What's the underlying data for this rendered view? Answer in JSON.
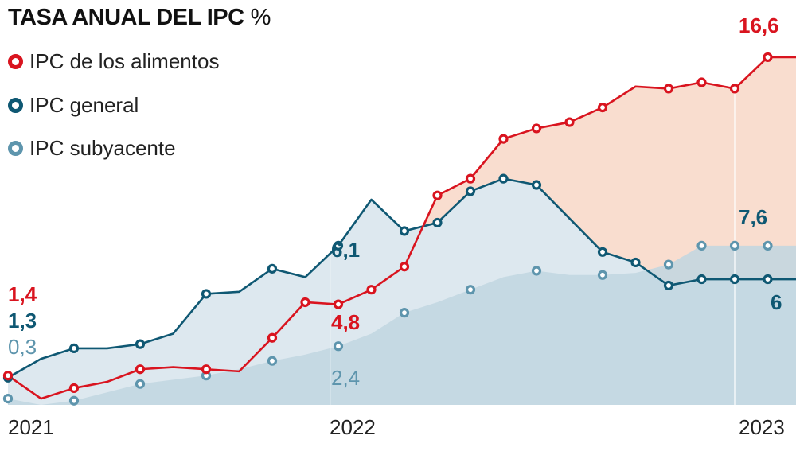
{
  "colors": {
    "food": "#d9141f",
    "general": "#0f5873",
    "core": "#5e95ad",
    "food_fill": "#f9ddcf",
    "general_fill": "#dde8ef",
    "core_fill": "#c1d6e1"
  },
  "header": {
    "title": "TASA ANUAL DEL IPC",
    "unit": "%"
  },
  "legend": [
    {
      "name": "IPC de los alimentos",
      "icon": "ring-marker-red"
    },
    {
      "name": "IPC general",
      "icon": "ring-marker-dark-blue"
    },
    {
      "name": "IPC subyacente",
      "icon": "ring-marker-light-blue"
    }
  ],
  "x_ticks": [
    "2021",
    "2022",
    "2023"
  ],
  "annotations": {
    "food_start": "1,4",
    "general_start": "1,3",
    "core_start": "0,3",
    "general_2022": "6,1",
    "food_2022": "4,8",
    "core_2022": "2,4",
    "food_end": "16,6",
    "core_end": "7,6",
    "general_end": "6"
  },
  "chart_data": {
    "type": "line",
    "title": "TASA ANUAL DEL IPC %",
    "x": [
      "2021-01",
      "2021-02",
      "2021-03",
      "2021-04",
      "2021-05",
      "2021-06",
      "2021-07",
      "2021-08",
      "2021-09",
      "2021-10",
      "2021-11",
      "2021-12",
      "2022-01",
      "2022-02",
      "2022-03",
      "2022-04",
      "2022-05",
      "2022-06",
      "2022-07",
      "2022-08",
      "2022-09",
      "2022-10",
      "2022-11",
      "2022-12",
      "2023-01"
    ],
    "x_ticks": [
      "2021",
      "2022",
      "2023"
    ],
    "ylim": [
      0,
      18
    ],
    "grid": false,
    "legend_position": "top-left",
    "series": [
      {
        "name": "IPC de los alimentos",
        "values": [
          1.4,
          0.3,
          0.8,
          1.1,
          1.7,
          1.8,
          1.7,
          1.6,
          3.2,
          4.9,
          4.8,
          5.5,
          6.6,
          10.0,
          10.8,
          12.7,
          13.2,
          13.5,
          14.2,
          15.2,
          15.1,
          15.4,
          15.1,
          16.6,
          16.6
        ]
      },
      {
        "name": "IPC general",
        "values": [
          1.3,
          2.2,
          2.7,
          2.7,
          2.9,
          3.4,
          5.3,
          5.4,
          6.5,
          6.1,
          7.6,
          9.8,
          8.3,
          8.7,
          10.2,
          10.8,
          10.5,
          8.9,
          7.3,
          6.8,
          5.7,
          6.0,
          6.0,
          6.0,
          6.0
        ]
      },
      {
        "name": "IPC subyacente",
        "values": [
          0.3,
          0.0,
          0.2,
          0.6,
          1.0,
          1.2,
          1.4,
          1.7,
          2.1,
          2.4,
          2.8,
          3.4,
          4.4,
          4.9,
          5.5,
          6.1,
          6.4,
          6.2,
          6.2,
          6.3,
          6.7,
          7.6,
          7.6,
          7.6,
          7.6
        ]
      }
    ]
  }
}
